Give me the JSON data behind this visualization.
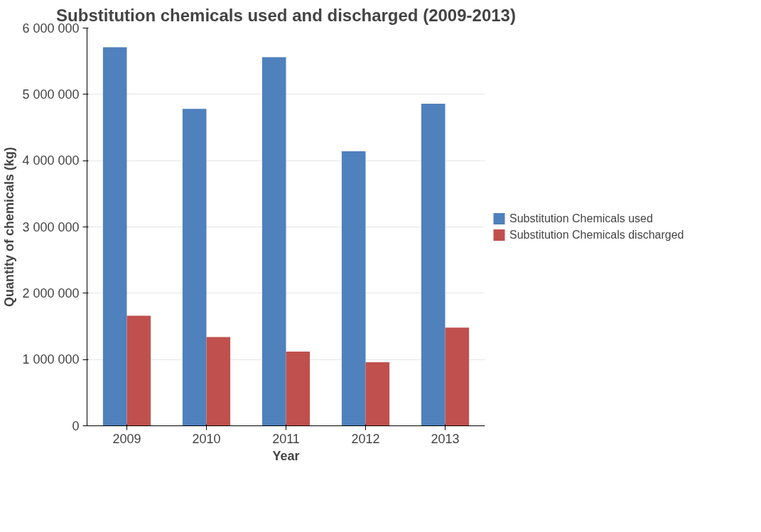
{
  "chart_data": {
    "type": "bar",
    "title": "Substitution chemicals used and discharged (2009-2013)",
    "xlabel": "Year",
    "ylabel": "Quantity of chemicals (kg)",
    "categories": [
      "2009",
      "2010",
      "2011",
      "2012",
      "2013"
    ],
    "series": [
      {
        "name": "Substitution Chemicals used",
        "color": "#4f81bd",
        "values": [
          5710000,
          4780000,
          5560000,
          4140000,
          4860000
        ]
      },
      {
        "name": "Substitution Chemicals discharged",
        "color": "#c0504d",
        "values": [
          1660000,
          1340000,
          1120000,
          960000,
          1480000
        ]
      }
    ],
    "ylim": [
      0,
      6000000
    ],
    "yticks": [
      0,
      {
        "value": 1000000,
        "label": "1 000 000"
      },
      {
        "value": 2000000,
        "label": "2 000 000"
      },
      {
        "value": 3000000,
        "label": "3 000 000"
      },
      {
        "value": 4000000,
        "label": "4 000 000"
      },
      {
        "value": 5000000,
        "label": "5 000 000"
      },
      {
        "value": 6000000,
        "label": "6 000 000"
      }
    ],
    "grid": "y",
    "legend": "right"
  }
}
